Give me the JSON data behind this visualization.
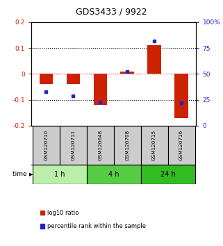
{
  "title": "GDS3433 / 9922",
  "samples": [
    "GSM120710",
    "GSM120711",
    "GSM120648",
    "GSM120708",
    "GSM120715",
    "GSM120716"
  ],
  "log10_ratio": [
    -0.04,
    -0.04,
    -0.12,
    0.01,
    0.11,
    -0.17
  ],
  "percentile_rank": [
    33,
    29,
    23,
    52,
    82,
    22
  ],
  "ylim_left": [
    -0.2,
    0.2
  ],
  "ylim_right": [
    0,
    100
  ],
  "yticks_left": [
    -0.2,
    -0.1,
    0.0,
    0.1,
    0.2
  ],
  "yticks_right": [
    0,
    25,
    50,
    75,
    100
  ],
  "ytick_labels_right": [
    "0",
    "25",
    "50",
    "75",
    "100%"
  ],
  "red_color": "#cc2200",
  "blue_color": "#2222cc",
  "bar_width": 0.5,
  "groups": [
    {
      "label": "1 h",
      "samples": [
        0,
        1
      ],
      "color": "#bbeeaa"
    },
    {
      "label": "4 h",
      "samples": [
        2,
        3
      ],
      "color": "#55cc44"
    },
    {
      "label": "24 h",
      "samples": [
        4,
        5
      ],
      "color": "#33bb22"
    }
  ],
  "time_label": "time",
  "legend": [
    {
      "label": "log10 ratio",
      "color": "#cc2200"
    },
    {
      "label": "percentile rank within the sample",
      "color": "#2222cc"
    }
  ],
  "sample_box_color": "#cccccc",
  "background_color": "#ffffff"
}
